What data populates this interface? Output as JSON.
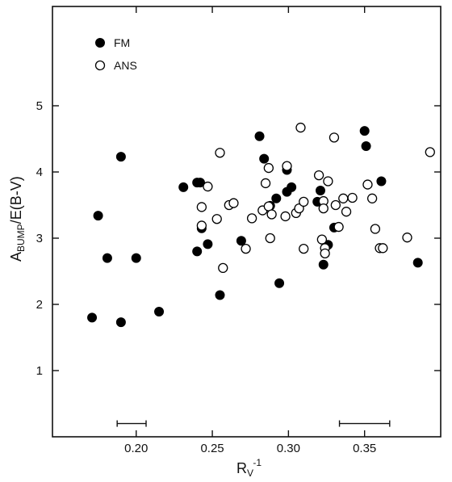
{
  "chart_data": {
    "type": "scatter",
    "title": "",
    "xlabel_main": "R",
    "xlabel_sub": "V",
    "xlabel_sup": "-1",
    "ylabel_main": "A",
    "ylabel_sub": "BUMP",
    "ylabel_rest": "/E(B-V)",
    "xlim": [
      0.145,
      0.4
    ],
    "ylim": [
      0,
      6.5
    ],
    "x_ticks": [
      0.2,
      0.25,
      0.3,
      0.35
    ],
    "x_tick_labels": [
      "0.20",
      "0.25",
      "0.30",
      "0.35"
    ],
    "y_ticks": [
      1,
      2,
      3,
      4,
      5
    ],
    "y_tick_labels": [
      "1",
      "2",
      "3",
      "4",
      "5"
    ],
    "legend_position": "top-left",
    "grid": false,
    "error_bars": [
      {
        "x": 0.197,
        "y": 0.2,
        "xerr": 0.0095
      },
      {
        "x": 0.35,
        "y": 0.2,
        "xerr": 0.0165
      }
    ],
    "series": [
      {
        "name": "FM",
        "marker": "filled-circle",
        "color": "#000000",
        "points": [
          [
            0.171,
            1.8
          ],
          [
            0.175,
            3.34
          ],
          [
            0.181,
            2.7
          ],
          [
            0.19,
            4.23
          ],
          [
            0.19,
            1.73
          ],
          [
            0.2,
            2.7
          ],
          [
            0.215,
            1.89
          ],
          [
            0.231,
            3.77
          ],
          [
            0.24,
            3.84
          ],
          [
            0.24,
            2.8
          ],
          [
            0.242,
            3.84
          ],
          [
            0.243,
            3.15
          ],
          [
            0.247,
            2.91
          ],
          [
            0.255,
            2.14
          ],
          [
            0.269,
            2.96
          ],
          [
            0.281,
            4.54
          ],
          [
            0.284,
            4.2
          ],
          [
            0.288,
            3.49
          ],
          [
            0.292,
            3.6
          ],
          [
            0.294,
            2.32
          ],
          [
            0.299,
            4.03
          ],
          [
            0.299,
            3.7
          ],
          [
            0.302,
            3.77
          ],
          [
            0.319,
            3.55
          ],
          [
            0.321,
            3.72
          ],
          [
            0.323,
            2.6
          ],
          [
            0.326,
            2.9
          ],
          [
            0.33,
            3.16
          ],
          [
            0.35,
            4.62
          ],
          [
            0.351,
            4.39
          ],
          [
            0.361,
            3.86
          ],
          [
            0.385,
            2.63
          ]
        ]
      },
      {
        "name": "ANS",
        "marker": "open-circle",
        "color": "#000000",
        "points": [
          [
            0.243,
            3.47
          ],
          [
            0.243,
            3.19
          ],
          [
            0.247,
            3.78
          ],
          [
            0.253,
            3.29
          ],
          [
            0.255,
            4.29
          ],
          [
            0.257,
            2.55
          ],
          [
            0.261,
            3.5
          ],
          [
            0.264,
            3.53
          ],
          [
            0.272,
            2.84
          ],
          [
            0.276,
            3.3
          ],
          [
            0.283,
            3.42
          ],
          [
            0.285,
            3.83
          ],
          [
            0.287,
            3.48
          ],
          [
            0.287,
            4.06
          ],
          [
            0.288,
            3.0
          ],
          [
            0.289,
            3.36
          ],
          [
            0.298,
            3.33
          ],
          [
            0.299,
            4.09
          ],
          [
            0.305,
            3.38
          ],
          [
            0.307,
            3.45
          ],
          [
            0.308,
            4.67
          ],
          [
            0.31,
            2.84
          ],
          [
            0.31,
            3.55
          ],
          [
            0.32,
            3.95
          ],
          [
            0.322,
            2.98
          ],
          [
            0.323,
            3.56
          ],
          [
            0.323,
            3.45
          ],
          [
            0.324,
            2.85
          ],
          [
            0.324,
            2.77
          ],
          [
            0.326,
            3.86
          ],
          [
            0.33,
            4.52
          ],
          [
            0.331,
            3.5
          ],
          [
            0.333,
            3.17
          ],
          [
            0.336,
            3.6
          ],
          [
            0.338,
            3.4
          ],
          [
            0.342,
            3.61
          ],
          [
            0.352,
            3.81
          ],
          [
            0.355,
            3.6
          ],
          [
            0.357,
            3.14
          ],
          [
            0.36,
            2.85
          ],
          [
            0.362,
            2.85
          ],
          [
            0.378,
            3.01
          ],
          [
            0.393,
            4.3
          ]
        ]
      }
    ]
  }
}
